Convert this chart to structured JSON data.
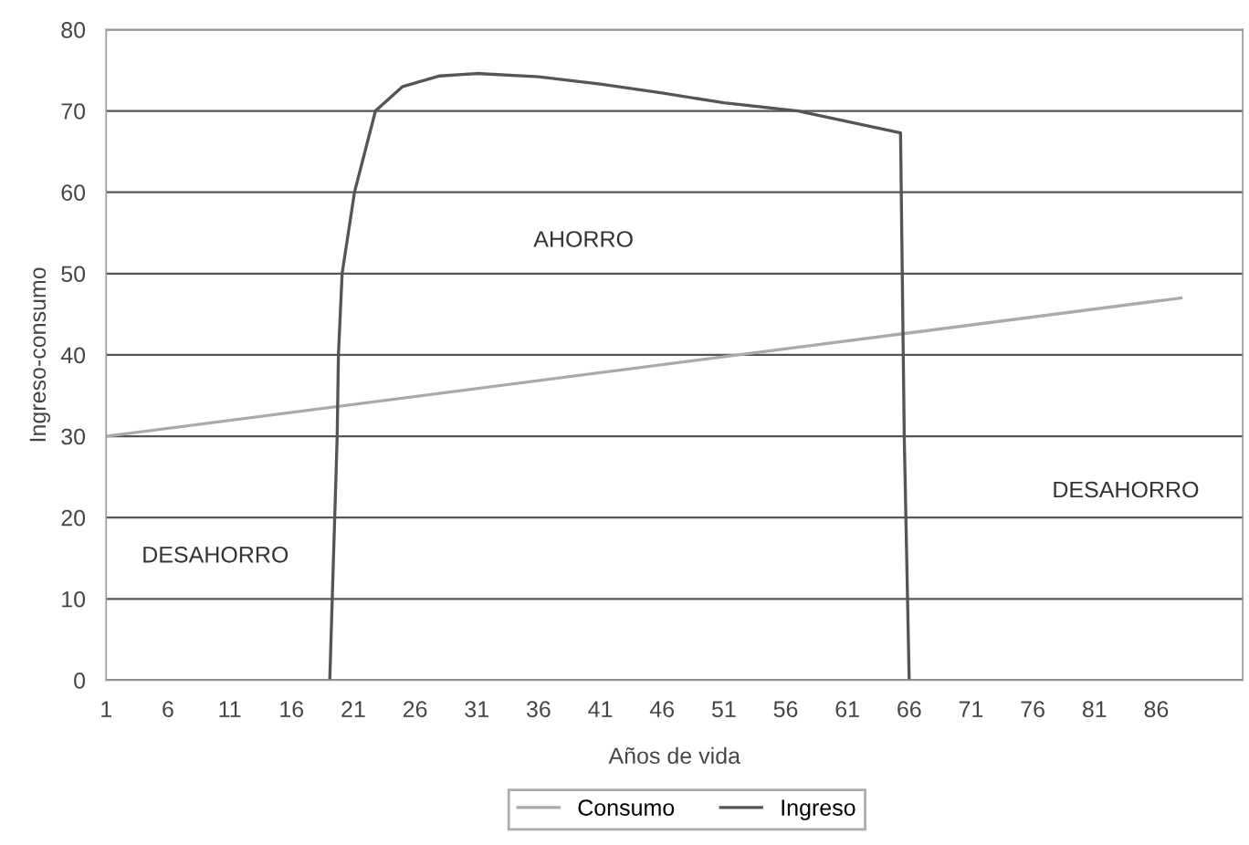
{
  "chart_data": {
    "type": "line",
    "xlabel": "Años de vida",
    "ylabel": "Ingreso-consumo",
    "xlim": [
      1,
      93
    ],
    "xticks": [
      1,
      6,
      11,
      16,
      21,
      26,
      31,
      36,
      41,
      46,
      51,
      56,
      61,
      66,
      71,
      76,
      81,
      86
    ],
    "ylim": [
      0,
      80
    ],
    "yticks": [
      0,
      10,
      20,
      30,
      40,
      50,
      60,
      70,
      80
    ],
    "grid": "y",
    "legend": "bottom",
    "marker": "none",
    "line_style": "solid",
    "series": [
      {
        "name": "Consumo",
        "color": "#aaaaaa",
        "x": [
          1,
          88
        ],
        "values": [
          30,
          47
        ]
      },
      {
        "name": "Ingreso",
        "color": "#555555",
        "x": [
          19.1,
          19.3,
          19.5,
          19.7,
          19.8,
          20.1,
          21.1,
          22.8,
          25,
          28,
          31,
          36,
          41,
          46,
          51,
          57,
          65.3,
          65.6,
          66
        ],
        "values": [
          0,
          10,
          20,
          30,
          40,
          50,
          60,
          70,
          73,
          74.3,
          74.6,
          74.2,
          73.3,
          72.2,
          71,
          70,
          67.3,
          30,
          0
        ]
      }
    ],
    "annotations": [
      "AHORRO",
      "DESAHORRO",
      "DESAHORRO"
    ]
  }
}
